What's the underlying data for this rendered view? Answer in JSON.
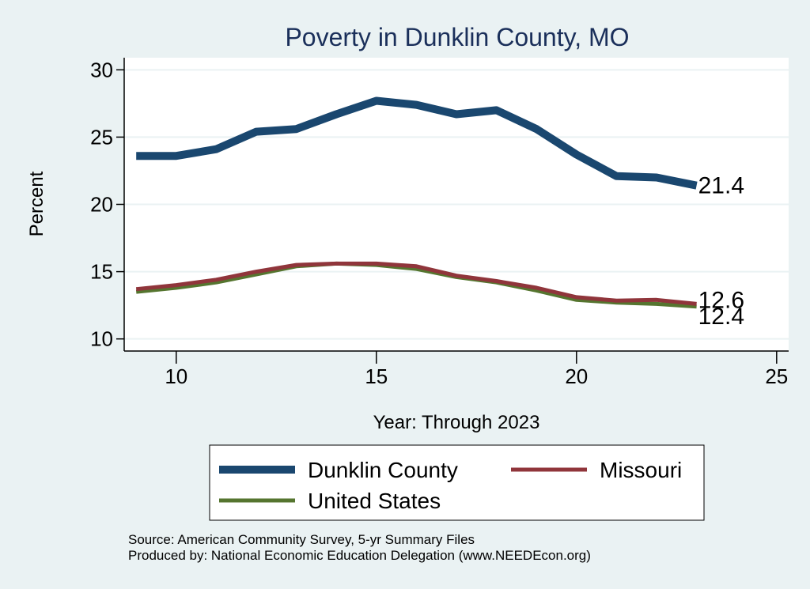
{
  "chart_data": {
    "type": "line",
    "title": "Poverty in Dunklin County, MO",
    "xlabel": "Year: Through 2023",
    "ylabel": "Percent",
    "xlim": [
      8.7,
      25.3
    ],
    "ylim": [
      9.1,
      30.9
    ],
    "xticks": [
      10,
      15,
      20,
      25
    ],
    "yticks": [
      10,
      15,
      20,
      25,
      30
    ],
    "grid": true,
    "legend_position": "bottom",
    "x": [
      9,
      10,
      11,
      12,
      13,
      14,
      15,
      16,
      17,
      18,
      19,
      20,
      21,
      22,
      23
    ],
    "series": [
      {
        "name": "Dunklin County",
        "color": "#1a476f",
        "values": [
          23.6,
          23.6,
          24.1,
          25.4,
          25.6,
          26.7,
          27.7,
          27.4,
          26.7,
          27.0,
          25.6,
          23.7,
          22.1,
          22.0,
          21.4
        ],
        "end_label": "21.4"
      },
      {
        "name": "Missouri",
        "color": "#90353b",
        "values": [
          13.7,
          14.0,
          14.4,
          15.0,
          15.5,
          15.6,
          15.6,
          15.4,
          14.7,
          14.3,
          13.8,
          13.1,
          12.85,
          12.9,
          12.6
        ],
        "end_label": "12.6"
      },
      {
        "name": "United States",
        "color": "#55752f",
        "values": [
          13.5,
          13.8,
          14.2,
          14.8,
          15.4,
          15.6,
          15.5,
          15.2,
          14.6,
          14.2,
          13.6,
          12.9,
          12.7,
          12.6,
          12.4
        ],
        "end_label": "12.4"
      }
    ],
    "notes": [
      "Source: American Community Survey, 5-yr Summary Files",
      "Produced by: National Economic Education Delegation (www.NEEDEcon.org)"
    ]
  }
}
